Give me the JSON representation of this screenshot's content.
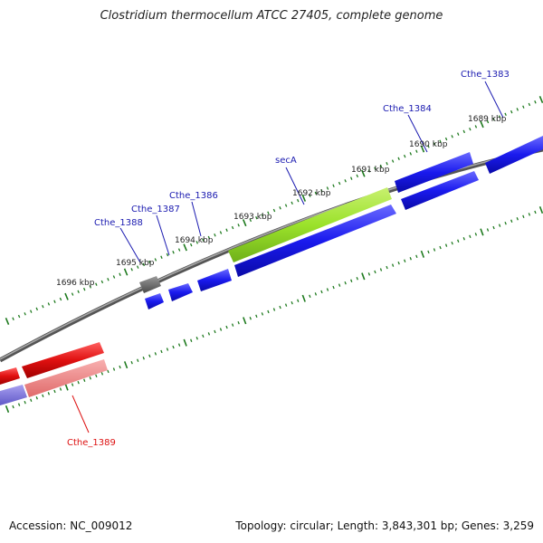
{
  "title": "Clostridium thermocellum ATCC 27405, complete genome",
  "footer": {
    "accession": "Accession: NC_009012",
    "summary": "Topology: circular; Length: 3,843,301 bp; Genes: 3,259"
  },
  "colors": {
    "forward_gene": "#1a1aee",
    "selected_gene": "#9be22a",
    "highlight_gene": "#e01010",
    "highlight_gene_light": "#f08080",
    "highlight_gene_rna": "#7a70d8",
    "pseudo_gene": "#6a6a6a",
    "backbone": "#888888",
    "tick": "#1e7a1e",
    "label_blue": "#1a1ab0",
    "label_red": "#dd1111"
  },
  "kbp_labels": [
    "1689 kbp",
    "1690 kbp",
    "1691 kbp",
    "1692 kbp",
    "1693 kbp",
    "1694 kbp",
    "1695 kbp",
    "1696 kbp"
  ],
  "gene_labels": [
    "Cthe_1383",
    "Cthe_1384",
    "secA",
    "Cthe_1386",
    "Cthe_1387",
    "Cthe_1388",
    "Cthe_1389"
  ]
}
